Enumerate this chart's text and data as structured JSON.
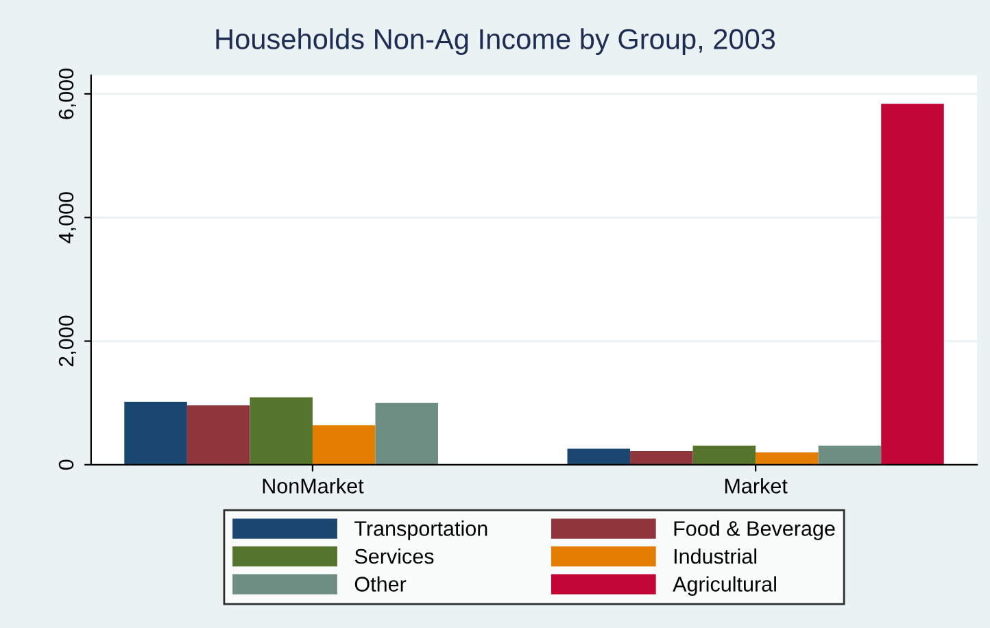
{
  "chart_data": {
    "type": "bar",
    "title": "Households Non-Ag Income by Group, 2003",
    "categories": [
      "NonMarket",
      "Market"
    ],
    "series": [
      {
        "name": "Transportation",
        "color": "#1a476f",
        "values": [
          1020,
          260
        ]
      },
      {
        "name": "Food & Beverage",
        "color": "#90353b",
        "values": [
          960,
          220
        ]
      },
      {
        "name": "Services",
        "color": "#55752f",
        "values": [
          1090,
          310
        ]
      },
      {
        "name": "Industrial",
        "color": "#e37e00",
        "values": [
          640,
          200
        ]
      },
      {
        "name": "Other",
        "color": "#6e8e84",
        "values": [
          1000,
          310
        ]
      },
      {
        "name": "Agricultural",
        "color": "#c10534",
        "values": [
          null,
          5840
        ]
      }
    ],
    "ylim": [
      0,
      6300
    ],
    "yticks": [
      0,
      {
        "value": 2000,
        "label": "2,000"
      },
      {
        "value": 4000,
        "label": "4,000"
      },
      {
        "value": 6000,
        "label": "6,000"
      }
    ],
    "grid": "y",
    "legend": "bottom"
  }
}
